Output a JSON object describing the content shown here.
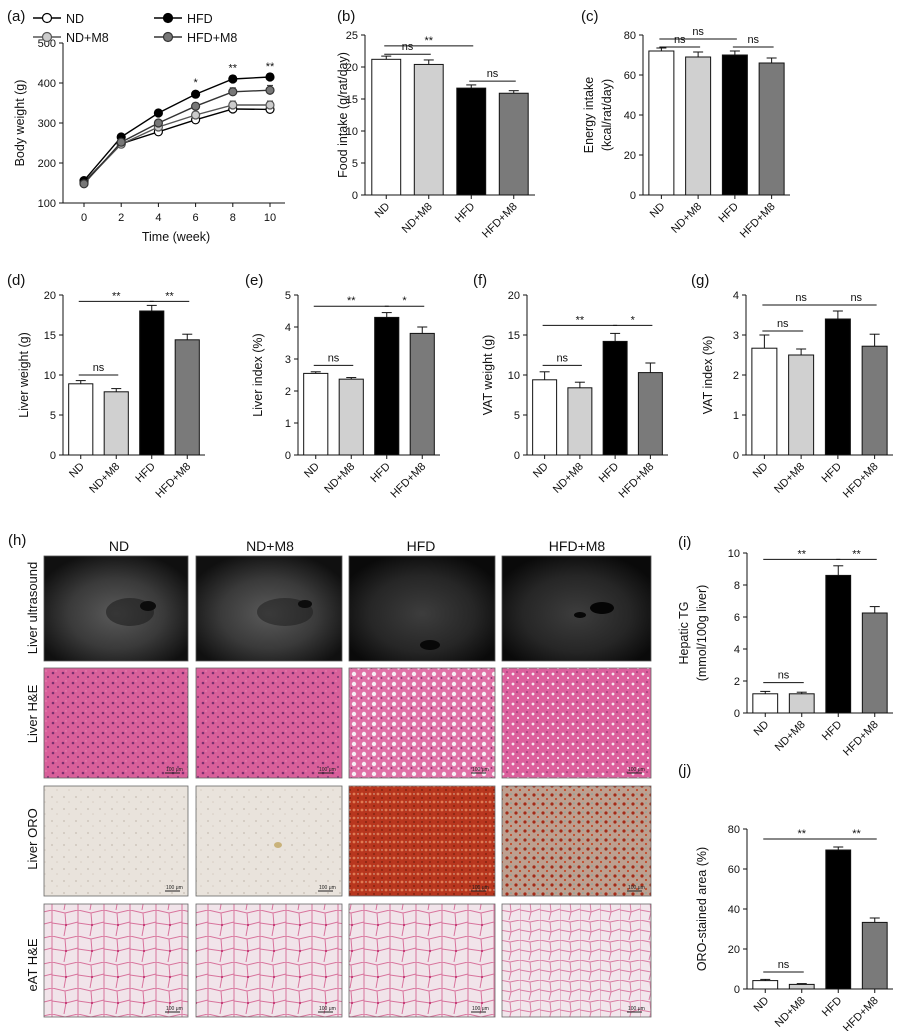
{
  "figure": {
    "panels": {
      "a": {
        "label": "(a)",
        "type": "line",
        "xlabel": "Time (week)",
        "ylabel": "Body weight (g)",
        "x": [
          0,
          2,
          4,
          6,
          8,
          10
        ],
        "xlim": [
          0,
          10
        ],
        "ylim": [
          100,
          500
        ],
        "yticks": [
          100,
          200,
          300,
          400,
          500
        ],
        "series": [
          {
            "name": "ND",
            "marker": "open",
            "color": "#111111",
            "values": [
              152,
              248,
              278,
              308,
              335,
              334
            ],
            "err": [
              4,
              5,
              6,
              8,
              10,
              10
            ]
          },
          {
            "name": "ND+M8",
            "marker": "light",
            "color": "#bbbbbb",
            "values": [
              150,
              247,
              290,
              320,
              345,
              345
            ],
            "err": [
              4,
              5,
              6,
              8,
              10,
              10
            ]
          },
          {
            "name": "HFD",
            "marker": "filled",
            "color": "#000000",
            "values": [
              156,
              265,
              325,
              372,
              410,
              415
            ],
            "err": [
              4,
              5,
              6,
              7,
              8,
              8
            ]
          },
          {
            "name": "HFD+M8",
            "marker": "dark",
            "color": "#777777",
            "values": [
              148,
              252,
              300,
              342,
              378,
              382
            ],
            "err": [
              4,
              5,
              7,
              8,
              10,
              12
            ]
          }
        ],
        "annotations": [
          {
            "x": 6,
            "y": 392,
            "text": "*"
          },
          {
            "x": 8,
            "y": 429,
            "text": "**"
          },
          {
            "x": 10,
            "y": 432,
            "text": "**"
          }
        ]
      },
      "b": {
        "label": "(b)",
        "type": "bar",
        "categories": [
          "ND",
          "ND+M8",
          "HFD",
          "HFD+M8"
        ],
        "values": [
          21.2,
          20.4,
          16.7,
          15.9
        ],
        "err": [
          0.5,
          0.7,
          0.5,
          0.4
        ],
        "ylabel": "Food intake (g/rat/day)",
        "ylim": [
          0,
          25
        ],
        "yticks": [
          0,
          5,
          10,
          15,
          20,
          25
        ],
        "sig": [
          {
            "from": 0,
            "to": 2,
            "y": 23.3,
            "text": "**"
          },
          {
            "from": 0,
            "to": 1,
            "y": 22.0,
            "text": "ns"
          },
          {
            "from": 2,
            "to": 3,
            "y": 17.8,
            "text": "ns"
          }
        ]
      },
      "c": {
        "label": "(c)",
        "type": "bar",
        "categories": [
          "ND",
          "ND+M8",
          "HFD",
          "HFD+M8"
        ],
        "values": [
          72,
          69,
          70,
          66
        ],
        "err": [
          1.5,
          2.5,
          2,
          2.5
        ],
        "ylabel": "Energy intake",
        "ylabel2": "(kcal/rat/day)",
        "ylim": [
          0,
          80
        ],
        "yticks": [
          0,
          20,
          40,
          60,
          80
        ],
        "sig": [
          {
            "from": 0,
            "to": 2,
            "y": 78,
            "text": "ns"
          },
          {
            "from": 0,
            "to": 1,
            "y": 74,
            "text": "ns"
          },
          {
            "from": 2,
            "to": 3,
            "y": 74,
            "text": "ns"
          }
        ]
      },
      "d": {
        "label": "(d)",
        "type": "bar",
        "categories": [
          "ND",
          "ND+M8",
          "HFD",
          "HFD+M8"
        ],
        "values": [
          8.9,
          7.9,
          18.0,
          14.4
        ],
        "err": [
          0.4,
          0.4,
          0.7,
          0.7
        ],
        "ylabel": "Liver weight (g)",
        "ylim": [
          0,
          20
        ],
        "yticks": [
          0,
          5,
          10,
          15,
          20
        ],
        "sig": [
          {
            "from": 0,
            "to": 2,
            "y": 19.2,
            "text": "**"
          },
          {
            "from": 2,
            "to": 3,
            "y": 19.2,
            "text": "**"
          },
          {
            "from": 0,
            "to": 1,
            "y": 10.0,
            "text": "ns"
          }
        ]
      },
      "e": {
        "label": "(e)",
        "type": "bar",
        "categories": [
          "ND",
          "ND+M8",
          "HFD",
          "HFD+M8"
        ],
        "values": [
          2.55,
          2.37,
          4.3,
          3.8
        ],
        "err": [
          0.05,
          0.05,
          0.15,
          0.2
        ],
        "ylabel": "Liver index (%)",
        "ylim": [
          0,
          5
        ],
        "yticks": [
          0,
          1,
          2,
          3,
          4,
          5
        ],
        "sig": [
          {
            "from": 0,
            "to": 2,
            "y": 4.65,
            "text": "**"
          },
          {
            "from": 2,
            "to": 3,
            "y": 4.65,
            "text": "*"
          },
          {
            "from": 0,
            "to": 1,
            "y": 2.8,
            "text": "ns"
          }
        ]
      },
      "f": {
        "label": "(f)",
        "type": "bar",
        "categories": [
          "ND",
          "ND+M8",
          "HFD",
          "HFD+M8"
        ],
        "values": [
          9.4,
          8.4,
          14.2,
          10.3
        ],
        "err": [
          1.0,
          0.7,
          1.0,
          1.2
        ],
        "ylabel": "VAT weight (g)",
        "ylim": [
          0,
          20
        ],
        "yticks": [
          0,
          5,
          10,
          15,
          20
        ],
        "sig": [
          {
            "from": 0,
            "to": 2,
            "y": 16.2,
            "text": "**"
          },
          {
            "from": 2,
            "to": 3,
            "y": 16.2,
            "text": "*"
          },
          {
            "from": 0,
            "to": 1,
            "y": 11.2,
            "text": "ns"
          }
        ]
      },
      "g": {
        "label": "(g)",
        "type": "bar",
        "categories": [
          "ND",
          "ND+M8",
          "HFD",
          "HFD+M8"
        ],
        "values": [
          2.67,
          2.5,
          3.4,
          2.72
        ],
        "err": [
          0.33,
          0.15,
          0.2,
          0.3
        ],
        "ylabel": "VAT index (%)",
        "ylim": [
          0,
          4
        ],
        "yticks": [
          0,
          1,
          2,
          3,
          4
        ],
        "sig": [
          {
            "from": 0,
            "to": 2,
            "y": 3.75,
            "text": "ns"
          },
          {
            "from": 2,
            "to": 3,
            "y": 3.75,
            "text": "ns"
          },
          {
            "from": 0,
            "to": 1,
            "y": 3.1,
            "text": "ns"
          }
        ]
      },
      "i": {
        "label": "(i)",
        "type": "bar",
        "categories": [
          "ND",
          "ND+M8",
          "HFD",
          "HFD+M8"
        ],
        "values": [
          1.2,
          1.2,
          8.6,
          6.25
        ],
        "err": [
          0.15,
          0.1,
          0.6,
          0.4
        ],
        "ylabel": "Hepatic TG",
        "ylabel2": "(mmol/100g liver)",
        "ylim": [
          0,
          10
        ],
        "yticks": [
          0,
          2,
          4,
          6,
          8,
          10
        ],
        "sig": [
          {
            "from": 0,
            "to": 2,
            "y": 9.6,
            "text": "**"
          },
          {
            "from": 2,
            "to": 3,
            "y": 9.6,
            "text": "**"
          },
          {
            "from": 0,
            "to": 1,
            "y": 1.9,
            "text": "ns"
          }
        ]
      },
      "j": {
        "label": "(j)",
        "type": "bar",
        "categories": [
          "ND",
          "ND+M8",
          "HFD",
          "HFD+M8"
        ],
        "values": [
          4.2,
          2.3,
          69.5,
          33.3
        ],
        "err": [
          0.6,
          0.4,
          1.5,
          2.2
        ],
        "ylabel": "ORO-stained area (%)",
        "ylim": [
          0,
          80
        ],
        "yticks": [
          0,
          20,
          40,
          60,
          80
        ],
        "sig": [
          {
            "from": 0,
            "to": 2,
            "y": 75,
            "text": "**"
          },
          {
            "from": 2,
            "to": 3,
            "y": 75,
            "text": "**"
          },
          {
            "from": 0,
            "to": 1,
            "y": 8.5,
            "text": "ns"
          }
        ]
      }
    },
    "micrographs": {
      "label": "(h)",
      "columns": [
        "ND",
        "ND+M8",
        "HFD",
        "HFD+M8"
      ],
      "rows": [
        "Liver ultrasound",
        "Liver H&E",
        "Liver ORO",
        "eAT H&E"
      ],
      "scale_bar_text": "100 μm"
    },
    "colors": {
      "ND": "#ffffff",
      "ND+M8": "#d0d0d0",
      "HFD": "#000000",
      "HFD+M8": "#7a7a7a"
    }
  }
}
